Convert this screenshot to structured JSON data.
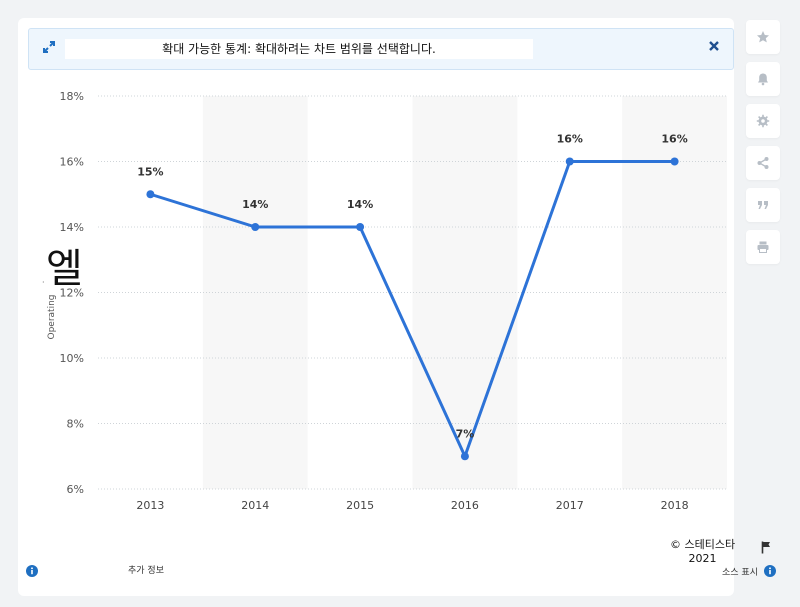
{
  "banner": {
    "message": "확대 가능한 통계: 확대하려는 차트 범위를 선택합니다."
  },
  "sidebar": {
    "icons": [
      "star-icon",
      "bell-icon",
      "gear-icon",
      "share-icon",
      "quote-icon",
      "print-icon"
    ]
  },
  "chart_data": {
    "type": "line",
    "categories": [
      "2013",
      "2014",
      "2015",
      "2016",
      "2017",
      "2018"
    ],
    "values": [
      15,
      14,
      14,
      7,
      16,
      16
    ],
    "value_labels": [
      "15%",
      "14%",
      "14%",
      "7%",
      "16%",
      "16%"
    ],
    "ylim": [
      6,
      18
    ],
    "yticks": [
      "6%",
      "8%",
      "10%",
      "12%",
      "14%",
      "16%",
      "18%"
    ],
    "ylabel": "Operating",
    "xlabel": "",
    "grid": true,
    "line_color": "#2d73d7",
    "band_color": "#f7f7f7"
  },
  "stray_glyph": "엘",
  "stray_mark": "·",
  "footer": {
    "copyright": "© 스테티스타",
    "year": "2021",
    "more_info": "추가 정보",
    "source": "소스 표시"
  },
  "colors": {
    "accent": "#1f6fc1",
    "background": "#f1f3f5"
  }
}
